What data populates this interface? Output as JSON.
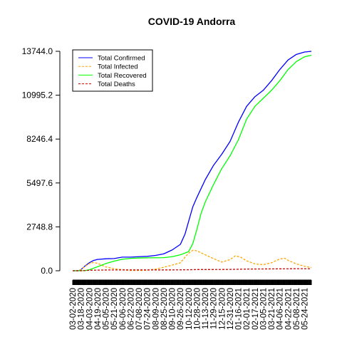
{
  "chart_data": {
    "type": "line",
    "title": "COVID-19 Andorra",
    "xlabel": "",
    "ylabel": "",
    "ylim": [
      0,
      13744.0
    ],
    "y_ticks": [
      "0.0",
      "2748.8",
      "5497.6",
      "8246.4",
      "10995.2",
      "13744.0"
    ],
    "x_tick_labels": [
      "03-02-2020",
      "03-18-2020",
      "04-03-2020",
      "04-19-2020",
      "05-05-2020",
      "05-21-2020",
      "06-06-2020",
      "06-22-2020",
      "07-08-2020",
      "07-24-2020",
      "08-09-2020",
      "08-25-2020",
      "09-10-2020",
      "09-26-2020",
      "10-12-2020",
      "10-28-2020",
      "11-13-2020",
      "11-29-2020",
      "12-15-2020",
      "12-31-2020",
      "01-16-2021",
      "02-01-2021",
      "02-17-2021",
      "03-05-2021",
      "03-21-2021",
      "04-06-2021",
      "04-22-2021",
      "05-08-2021",
      "05-24-2021"
    ],
    "x_start": "2020-03-02",
    "x_end": "2021-06-06",
    "legend_position": "top-left",
    "series": [
      {
        "name": "Total Confirmed",
        "color": "#0000ff",
        "dash": "solid",
        "points": [
          [
            "2020-03-02",
            0
          ],
          [
            "2020-03-14",
            1
          ],
          [
            "2020-03-18",
            75
          ],
          [
            "2020-03-26",
            300
          ],
          [
            "2020-04-03",
            500
          ],
          [
            "2020-04-11",
            640
          ],
          [
            "2020-04-19",
            710
          ],
          [
            "2020-05-05",
            750
          ],
          [
            "2020-05-21",
            764
          ],
          [
            "2020-06-06",
            852
          ],
          [
            "2020-06-22",
            855
          ],
          [
            "2020-07-08",
            880
          ],
          [
            "2020-07-24",
            900
          ],
          [
            "2020-08-09",
            960
          ],
          [
            "2020-08-25",
            1060
          ],
          [
            "2020-09-10",
            1300
          ],
          [
            "2020-09-26",
            1650
          ],
          [
            "2020-10-05",
            2300
          ],
          [
            "2020-10-12",
            3100
          ],
          [
            "2020-10-20",
            4000
          ],
          [
            "2020-10-28",
            4600
          ],
          [
            "2020-11-13",
            5700
          ],
          [
            "2020-11-29",
            6600
          ],
          [
            "2020-12-15",
            7300
          ],
          [
            "2020-12-31",
            8100
          ],
          [
            "2021-01-16",
            9300
          ],
          [
            "2021-02-01",
            10300
          ],
          [
            "2021-02-17",
            10900
          ],
          [
            "2021-03-05",
            11300
          ],
          [
            "2021-03-21",
            11900
          ],
          [
            "2021-04-06",
            12600
          ],
          [
            "2021-04-22",
            13200
          ],
          [
            "2021-05-08",
            13550
          ],
          [
            "2021-05-24",
            13700
          ],
          [
            "2021-06-06",
            13744
          ]
        ]
      },
      {
        "name": "Total Infected",
        "color": "#ffa500",
        "dash": "dashed",
        "points": [
          [
            "2020-03-02",
            0
          ],
          [
            "2020-03-14",
            1
          ],
          [
            "2020-03-18",
            70
          ],
          [
            "2020-03-26",
            280
          ],
          [
            "2020-04-03",
            450
          ],
          [
            "2020-04-11",
            520
          ],
          [
            "2020-04-19",
            470
          ],
          [
            "2020-04-27",
            350
          ],
          [
            "2020-05-05",
            240
          ],
          [
            "2020-05-21",
            130
          ],
          [
            "2020-06-06",
            60
          ],
          [
            "2020-06-22",
            20
          ],
          [
            "2020-07-08",
            15
          ],
          [
            "2020-07-24",
            35
          ],
          [
            "2020-08-09",
            100
          ],
          [
            "2020-08-25",
            220
          ],
          [
            "2020-09-10",
            350
          ],
          [
            "2020-09-26",
            500
          ],
          [
            "2020-10-05",
            850
          ],
          [
            "2020-10-12",
            1100
          ],
          [
            "2020-10-20",
            1280
          ],
          [
            "2020-10-28",
            1250
          ],
          [
            "2020-11-13",
            1000
          ],
          [
            "2020-11-29",
            760
          ],
          [
            "2020-12-15",
            540
          ],
          [
            "2020-12-31",
            700
          ],
          [
            "2021-01-10",
            930
          ],
          [
            "2021-01-20",
            860
          ],
          [
            "2021-02-01",
            620
          ],
          [
            "2021-02-17",
            430
          ],
          [
            "2021-03-05",
            380
          ],
          [
            "2021-03-21",
            500
          ],
          [
            "2021-04-06",
            740
          ],
          [
            "2021-04-16",
            780
          ],
          [
            "2021-04-22",
            650
          ],
          [
            "2021-05-08",
            430
          ],
          [
            "2021-05-24",
            280
          ],
          [
            "2021-06-06",
            200
          ]
        ]
      },
      {
        "name": "Total Recovered",
        "color": "#00ff00",
        "dash": "solid",
        "points": [
          [
            "2020-03-02",
            0
          ],
          [
            "2020-03-26",
            10
          ],
          [
            "2020-04-03",
            60
          ],
          [
            "2020-04-19",
            250
          ],
          [
            "2020-05-05",
            450
          ],
          [
            "2020-05-21",
            600
          ],
          [
            "2020-06-06",
            720
          ],
          [
            "2020-06-22",
            775
          ],
          [
            "2020-07-08",
            800
          ],
          [
            "2020-07-24",
            810
          ],
          [
            "2020-08-09",
            815
          ],
          [
            "2020-08-25",
            820
          ],
          [
            "2020-09-10",
            880
          ],
          [
            "2020-09-26",
            1000
          ],
          [
            "2020-10-12",
            1200
          ],
          [
            "2020-10-20",
            1700
          ],
          [
            "2020-10-28",
            2600
          ],
          [
            "2020-11-05",
            3600
          ],
          [
            "2020-11-13",
            4300
          ],
          [
            "2020-11-29",
            5400
          ],
          [
            "2020-12-15",
            6400
          ],
          [
            "2020-12-31",
            7200
          ],
          [
            "2021-01-16",
            8200
          ],
          [
            "2021-02-01",
            9500
          ],
          [
            "2021-02-17",
            10300
          ],
          [
            "2021-03-05",
            10800
          ],
          [
            "2021-03-21",
            11300
          ],
          [
            "2021-04-06",
            11900
          ],
          [
            "2021-04-22",
            12600
          ],
          [
            "2021-05-08",
            13100
          ],
          [
            "2021-05-24",
            13400
          ],
          [
            "2021-06-06",
            13500
          ]
        ]
      },
      {
        "name": "Total Deaths",
        "color": "#cc0000",
        "dash": "dashed",
        "points": [
          [
            "2020-03-02",
            0
          ],
          [
            "2020-03-20",
            3
          ],
          [
            "2020-04-03",
            30
          ],
          [
            "2020-04-19",
            40
          ],
          [
            "2020-05-05",
            48
          ],
          [
            "2020-06-06",
            52
          ],
          [
            "2020-09-10",
            53
          ],
          [
            "2020-10-12",
            62
          ],
          [
            "2020-10-28",
            75
          ],
          [
            "2020-11-29",
            76
          ],
          [
            "2020-12-31",
            84
          ],
          [
            "2021-02-01",
            105
          ],
          [
            "2021-03-05",
            113
          ],
          [
            "2021-04-06",
            120
          ],
          [
            "2021-05-08",
            127
          ],
          [
            "2021-06-06",
            127
          ]
        ]
      }
    ]
  }
}
